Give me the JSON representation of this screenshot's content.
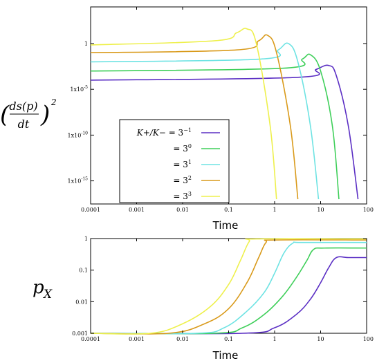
{
  "chart_data": [
    {
      "type": "line",
      "xlabel": "Time",
      "ylabel": "(ds(p)/dt)^2",
      "x_scale": "log",
      "y_scale": "log",
      "xlim": [
        0.0001,
        100
      ],
      "ylim": [
        3e-18,
        10000.0
      ],
      "xticks": [
        "0.0001",
        "0.001",
        "0.01",
        "0.1",
        "1",
        "10",
        "100"
      ],
      "yticks": [
        "1",
        "1x10^-5",
        "1x10^-10",
        "1x10^-15"
      ],
      "legend_position": "bottom-left",
      "legend_header": "K+/K− = 3^−1",
      "series": [
        {
          "name": "K+/K− = 3^−1",
          "color": "#5b2fc4",
          "x": [
            0.0001,
            3,
            8,
            15,
            22,
            40,
            65
          ],
          "y": [
            0.0001,
            0.0002,
            0.0015,
            0.004,
            0.0003,
            1e-09,
            1e-17
          ]
        },
        {
          "name": "= 3^0",
          "color": "#3fcf5a",
          "x": [
            0.0001,
            1.5,
            4,
            6,
            10,
            18,
            25
          ],
          "y": [
            0.001,
            0.002,
            0.02,
            0.06,
            0.001,
            1e-09,
            1e-17
          ]
        },
        {
          "name": "= 3^1",
          "color": "#6ee3e3",
          "x": [
            0.0001,
            0.5,
            1.2,
            2,
            3.2,
            6,
            9
          ],
          "y": [
            0.01,
            0.02,
            0.2,
            1.0,
            0.01,
            1e-09,
            1e-17
          ]
        },
        {
          "name": "= 3^2",
          "color": "#d99a1a",
          "x": [
            0.0001,
            0.15,
            0.45,
            0.7,
            1.1,
            2.2,
            3.2
          ],
          "y": [
            0.1,
            0.2,
            2.0,
            8.0,
            0.1,
            1e-09,
            1e-17
          ]
        },
        {
          "name": "= 3^3",
          "color": "#eef04c",
          "x": [
            0.0001,
            0.05,
            0.15,
            0.25,
            0.4,
            0.8,
            1.1
          ],
          "y": [
            0.7,
            2.0,
            15.0,
            40.0,
            1.0,
            1e-09,
            1e-17
          ]
        }
      ]
    },
    {
      "type": "line",
      "xlabel": "Time",
      "ylabel": "p_X",
      "x_scale": "log",
      "y_scale": "log",
      "xlim": [
        0.0001,
        100
      ],
      "ylim": [
        0.001,
        1
      ],
      "xticks": [
        "0.0001",
        "0.001",
        "0.01",
        "0.1",
        "1",
        "10",
        "100"
      ],
      "yticks": [
        "1",
        "0.1",
        "0.01",
        "0.001"
      ],
      "series": [
        {
          "name": "K+/K− = 3^−1",
          "color": "#5b2fc4",
          "x": [
            0.0001,
            0.2,
            1,
            3,
            6,
            10,
            15,
            22,
            40,
            100
          ],
          "y": [
            0.001,
            0.001,
            0.0015,
            0.004,
            0.012,
            0.04,
            0.12,
            0.25,
            0.25,
            0.25
          ]
        },
        {
          "name": "= 3^0",
          "color": "#3fcf5a",
          "x": [
            0.0001,
            0.05,
            0.2,
            0.6,
            1.5,
            3,
            5,
            7,
            12,
            100
          ],
          "y": [
            0.001,
            0.001,
            0.0015,
            0.004,
            0.015,
            0.06,
            0.2,
            0.45,
            0.5,
            0.5
          ]
        },
        {
          "name": "= 3^1",
          "color": "#6ee3e3",
          "x": [
            0.0001,
            0.02,
            0.08,
            0.25,
            0.6,
            1,
            1.6,
            2.5,
            4,
            100
          ],
          "y": [
            0.001,
            0.001,
            0.0015,
            0.005,
            0.02,
            0.08,
            0.35,
            0.72,
            0.75,
            0.75
          ]
        },
        {
          "name": "= 3^2",
          "color": "#d99a1a",
          "x": [
            0.0001,
            0.005,
            0.03,
            0.1,
            0.25,
            0.45,
            0.65,
            1,
            100
          ],
          "y": [
            0.001,
            0.001,
            0.002,
            0.006,
            0.04,
            0.25,
            0.75,
            0.9,
            0.9
          ]
        },
        {
          "name": "= 3^3",
          "color": "#eef04c",
          "x": [
            0.0001,
            0.002,
            0.01,
            0.04,
            0.1,
            0.18,
            0.28,
            0.4,
            100
          ],
          "y": [
            0.001,
            0.001,
            0.002,
            0.007,
            0.035,
            0.2,
            0.8,
            0.97,
            0.97
          ]
        }
      ]
    }
  ],
  "legend": {
    "rows": [
      {
        "prefix": "K+/K−",
        "text": "= 3",
        "exp": "−1",
        "color": "#5b2fc4"
      },
      {
        "prefix": "",
        "text": "= 3",
        "exp": "0",
        "color": "#3fcf5a"
      },
      {
        "prefix": "",
        "text": "= 3",
        "exp": "1",
        "color": "#6ee3e3"
      },
      {
        "prefix": "",
        "text": "= 3",
        "exp": "2",
        "color": "#d99a1a"
      },
      {
        "prefix": "",
        "text": "= 3",
        "exp": "3",
        "color": "#eef04c"
      }
    ]
  },
  "labels": {
    "top_ylabel_numer": "ds(p)",
    "top_ylabel_denom": "dt",
    "top_ylabel_exp": "2",
    "bottom_ylabel": "p",
    "bottom_ylabel_sub": "X"
  }
}
